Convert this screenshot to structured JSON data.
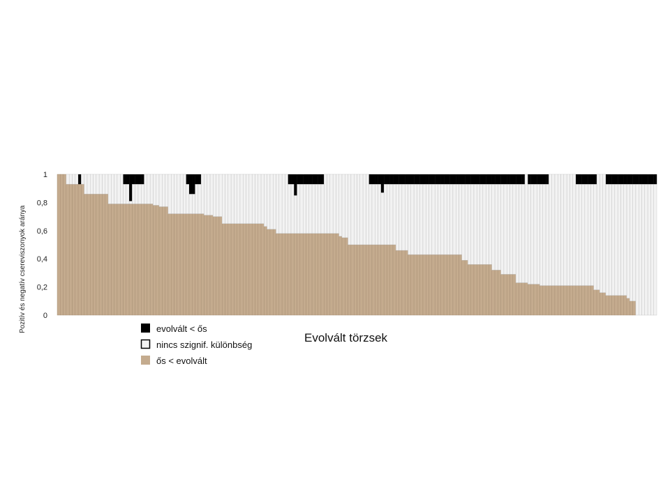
{
  "chart_data": {
    "type": "bar",
    "stacked": true,
    "xlabel": "Evolvált törzsek",
    "ylabel": "Pozitív és negatív csereviszonyok aránya",
    "ylim": [
      0,
      1
    ],
    "yticks": [
      "0",
      "0,2",
      "0,4",
      "0,6",
      "0,8",
      "1"
    ],
    "ytick_values": [
      0,
      0.2,
      0.4,
      0.6,
      0.8,
      1
    ],
    "grid": false,
    "legend_position": "bottom-left",
    "series": [
      {
        "name": "evolvált < ős",
        "color": "#000000",
        "stack_position": "top"
      },
      {
        "name": "nincs szignif. különbség",
        "color": "#f2f2f2",
        "stack_position": "middle"
      },
      {
        "name": "ős < evolvált",
        "color": "#c4ab8e",
        "stack_position": "bottom"
      }
    ],
    "n_bars": 200,
    "bottom_segments": [
      [
        3,
        1.0
      ],
      [
        10,
        0.93
      ],
      [
        20,
        0.86
      ],
      [
        39,
        0.79
      ],
      [
        42,
        0.78
      ],
      [
        45,
        0.77
      ],
      [
        60,
        0.72
      ],
      [
        64,
        0.71
      ],
      [
        68,
        0.7
      ],
      [
        85,
        0.65
      ],
      [
        87,
        0.63
      ],
      [
        90,
        0.61
      ],
      [
        116,
        0.58
      ],
      [
        118,
        0.56
      ],
      [
        120,
        0.55
      ],
      [
        132,
        0.5
      ],
      [
        140,
        0.5
      ],
      [
        145,
        0.46
      ],
      [
        168,
        0.43
      ],
      [
        170,
        0.39
      ],
      [
        180,
        0.36
      ],
      [
        184,
        0.32
      ],
      [
        190,
        0.29
      ],
      [
        195,
        0.23
      ],
      [
        200,
        0.22
      ],
      [
        210,
        0.21
      ],
      [
        222,
        0.21
      ],
      [
        225,
        0.18
      ],
      [
        228,
        0.16
      ],
      [
        236,
        0.14
      ],
      [
        238,
        0.12
      ],
      [
        240,
        0.1
      ],
      [
        248,
        0.0
      ]
    ],
    "top_black_segments": [
      [
        4,
        0.07
      ],
      [
        13,
        0.07
      ],
      [
        14,
        0.19
      ],
      [
        15,
        0.07
      ],
      [
        16,
        0.07
      ],
      [
        25,
        0.07
      ],
      [
        26,
        0.14
      ],
      [
        27,
        0.07
      ],
      [
        45,
        0.07
      ],
      [
        46,
        0.15
      ],
      [
        47,
        0.07
      ],
      [
        48,
        0.07
      ],
      [
        49,
        0.07
      ],
      [
        50,
        0.07
      ],
      [
        51,
        0.07
      ],
      [
        60,
        0.0
      ],
      [
        61,
        0.07
      ],
      [
        62,
        0.07
      ],
      [
        63,
        0.13
      ],
      [
        64,
        0.07
      ],
      [
        65,
        0.07
      ],
      [
        66,
        0.07
      ],
      [
        67,
        0.07
      ],
      [
        68,
        0.07
      ],
      [
        69,
        0.07
      ],
      [
        70,
        0.07
      ],
      [
        71,
        0.07
      ],
      [
        72,
        0.07
      ],
      [
        73,
        0.07
      ],
      [
        74,
        0.07
      ],
      [
        75,
        0.07
      ],
      [
        76,
        0.07
      ],
      [
        77,
        0.07
      ],
      [
        78,
        0.07
      ],
      [
        79,
        0.07
      ],
      [
        80,
        0.07
      ],
      [
        81,
        0.07
      ],
      [
        82,
        0.07
      ],
      [
        83,
        0.07
      ],
      [
        84,
        0.07
      ],
      [
        85,
        0.07
      ],
      [
        86,
        0.07
      ],
      [
        87,
        0.07
      ],
      [
        88,
        0.07
      ],
      [
        89,
        0.07
      ],
      [
        90,
        0.07
      ],
      [
        92,
        0.07
      ],
      [
        93,
        0.07
      ],
      [
        94,
        0.07
      ],
      [
        95,
        0.07
      ],
      [
        101,
        0.07
      ],
      [
        102,
        0.07
      ],
      [
        103,
        0.07
      ],
      [
        104,
        0.07
      ],
      [
        107,
        0.07
      ],
      [
        108,
        0.07
      ],
      [
        109,
        0.07
      ],
      [
        110,
        0.07
      ],
      [
        111,
        0.07
      ],
      [
        112,
        0.07
      ],
      [
        113,
        0.07
      ],
      [
        114,
        0.07
      ],
      [
        115,
        0.07
      ],
      [
        116,
        0.07
      ]
    ]
  },
  "legend": {
    "item1": "evolvált  < ős",
    "item2": "nincs szignif. különbség",
    "item3": "ős < evolvált"
  }
}
